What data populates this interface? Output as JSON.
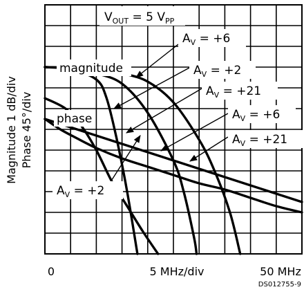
{
  "chart_data": {
    "type": "line",
    "title": "",
    "ylabel_lines": [
      "Magnitude 1 dB/div",
      "Phase 45°/div"
    ],
    "xlabel": "5 MHz/div",
    "x_tick_left": "0",
    "x_tick_right": "50 MHz",
    "figure_id": "DS012755-9",
    "grid": true,
    "xlim": [
      0,
      50
    ],
    "x_unit": "MHz",
    "divisions": {
      "x": 10,
      "y": 12
    },
    "vout": {
      "main": "V",
      "sub": "OUT",
      "eq": " = 5 V",
      "sub2": "PP"
    },
    "group_labels": {
      "magnitude": "magnitude",
      "phase": "phase"
    },
    "gain_labels": [
      {
        "id": "m6",
        "sym": "A",
        "sub": "V",
        "text": " = +6"
      },
      {
        "id": "m2",
        "sym": "A",
        "sub": "V",
        "text": " = +2"
      },
      {
        "id": "m21",
        "sym": "A",
        "sub": "V",
        "text": " = +21"
      },
      {
        "id": "p6",
        "sym": "A",
        "sub": "V",
        "text": " = +6"
      },
      {
        "id": "p21",
        "sym": "A",
        "sub": "V",
        "text": " = +21"
      },
      {
        "id": "p2",
        "sym": "A",
        "sub": "V",
        "text": " = +2"
      }
    ],
    "series": [
      {
        "group": "magnitude",
        "gain": "+2",
        "points": [
          [
            0,
            9
          ],
          [
            5,
            8.9
          ],
          [
            10,
            8.4
          ],
          [
            12,
            7.5
          ],
          [
            14,
            5.5
          ],
          [
            16,
            3
          ],
          [
            18,
            0
          ]
        ]
      },
      {
        "group": "magnitude",
        "gain": "+21",
        "points": [
          [
            0,
            9
          ],
          [
            5,
            8.95
          ],
          [
            10,
            8.7
          ],
          [
            15,
            8.2
          ],
          [
            20,
            6.8
          ],
          [
            25,
            4.5
          ],
          [
            27,
            3
          ],
          [
            29,
            0.8
          ],
          [
            29.5,
            0
          ]
        ]
      },
      {
        "group": "magnitude",
        "gain": "+6",
        "points": [
          [
            0,
            9
          ],
          [
            10,
            8.9
          ],
          [
            15,
            8.7
          ],
          [
            20,
            8.3
          ],
          [
            25,
            7.3
          ],
          [
            30,
            5.5
          ],
          [
            33,
            4
          ],
          [
            36,
            2
          ],
          [
            38,
            0
          ]
        ]
      },
      {
        "group": "phase",
        "gain": "+2",
        "points": [
          [
            0,
            7.5
          ],
          [
            4,
            7
          ],
          [
            7,
            6.2
          ],
          [
            10,
            5
          ],
          [
            13,
            3.5
          ],
          [
            16,
            2.3
          ],
          [
            19,
            1.1
          ],
          [
            22,
            0
          ]
        ]
      },
      {
        "group": "phase",
        "gain": "+6",
        "points": [
          [
            0,
            6.5
          ],
          [
            10,
            5.7
          ],
          [
            20,
            4.9
          ],
          [
            30,
            4.1
          ],
          [
            40,
            3.3
          ],
          [
            50,
            2.5
          ]
        ]
      },
      {
        "group": "phase",
        "gain": "+21",
        "points": [
          [
            0,
            6.5
          ],
          [
            3,
            6
          ],
          [
            6,
            5.6
          ],
          [
            10,
            5.1
          ],
          [
            15,
            4.6
          ],
          [
            20,
            4.2
          ],
          [
            25,
            3.8
          ],
          [
            30,
            3.4
          ],
          [
            35,
            3.1
          ],
          [
            40,
            2.7
          ],
          [
            45,
            2.3
          ],
          [
            50,
            2
          ]
        ]
      }
    ]
  }
}
